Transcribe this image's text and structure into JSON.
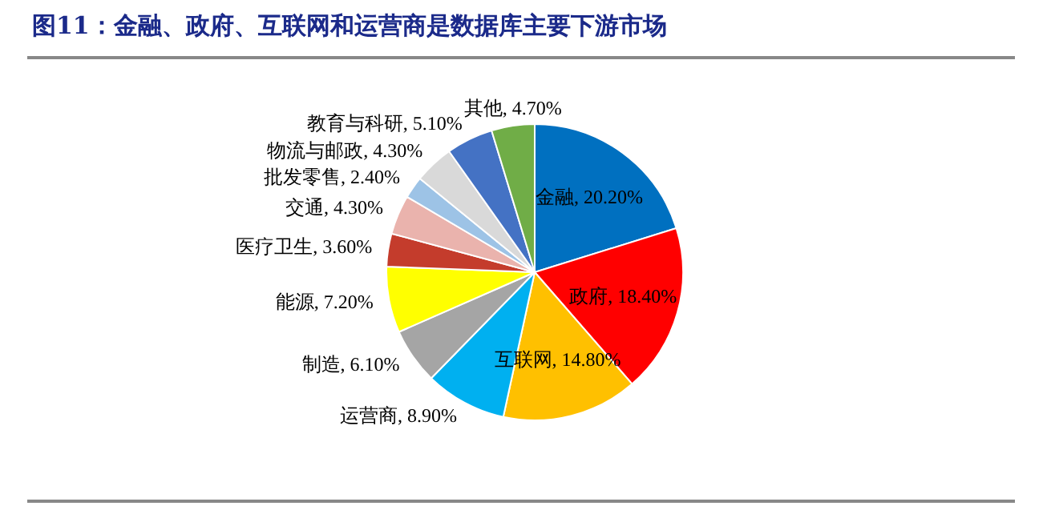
{
  "chart_data": {
    "type": "pie",
    "title": "图11：金融、政府、互联网和运营商是数据库主要下游市场",
    "categories": [
      "金融",
      "政府",
      "互联网",
      "运营商",
      "制造",
      "能源",
      "医疗卫生",
      "交通",
      "批发零售",
      "物流与邮政",
      "教育与科研",
      "其他"
    ],
    "values": [
      20.2,
      18.4,
      14.8,
      8.9,
      6.1,
      7.2,
      3.6,
      4.3,
      2.4,
      4.3,
      5.1,
      4.7
    ],
    "value_labels": [
      "20.20%",
      "18.40%",
      "14.80%",
      "8.90%",
      "6.10%",
      "7.20%",
      "3.60%",
      "4.30%",
      "2.40%",
      "4.30%",
      "5.10%",
      "4.70%"
    ],
    "colors": [
      "#0070c0",
      "#ff0000",
      "#ffc000",
      "#00b0f0",
      "#a5a5a5",
      "#ffff00",
      "#c43c2c",
      "#eab3ad",
      "#9dc3e6",
      "#d9d9d9",
      "#4472c4",
      "#70ad47"
    ],
    "legend": false
  }
}
